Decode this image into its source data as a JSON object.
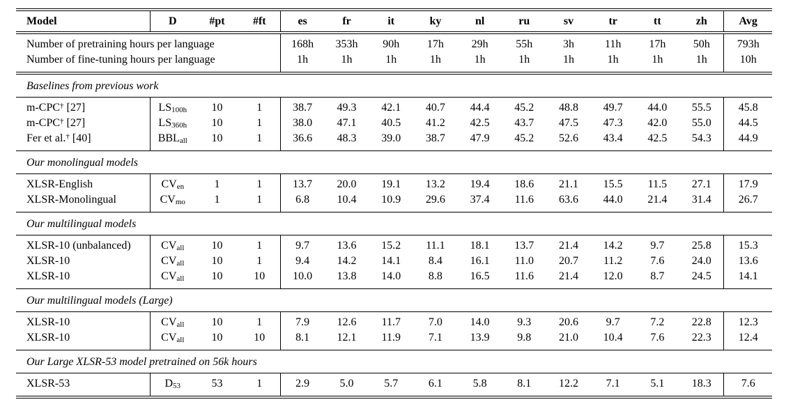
{
  "table": {
    "columns": [
      "Model",
      "D",
      "#pt",
      "#ft",
      "es",
      "fr",
      "it",
      "ky",
      "nl",
      "ru",
      "sv",
      "tr",
      "tt",
      "zh",
      "Avg"
    ],
    "hours_rows": [
      {
        "label": "Number of pretraining hours per language",
        "values": [
          "168h",
          "353h",
          "90h",
          "17h",
          "29h",
          "55h",
          "3h",
          "11h",
          "17h",
          "50h"
        ],
        "avg": "793h"
      },
      {
        "label": "Number of fine-tuning hours per language",
        "values": [
          "1h",
          "1h",
          "1h",
          "1h",
          "1h",
          "1h",
          "1h",
          "1h",
          "1h",
          "1h"
        ],
        "avg": "10h"
      }
    ],
    "sections": [
      {
        "title": "Baselines from previous work",
        "rows": [
          {
            "model": [
              {
                "t": "m-CPC"
              },
              {
                "t": "†",
                "s": "sup"
              },
              {
                "t": " [27]"
              }
            ],
            "d": [
              {
                "t": "LS"
              },
              {
                "t": "100h",
                "s": "sub"
              }
            ],
            "pt": "10",
            "ft": "1",
            "values": [
              "38.7",
              "49.3",
              "42.1",
              "40.7",
              "44.4",
              "45.2",
              "48.8",
              "49.7",
              "44.0",
              "55.5"
            ],
            "avg": "45.8"
          },
          {
            "model": [
              {
                "t": "m-CPC"
              },
              {
                "t": "†",
                "s": "sup"
              },
              {
                "t": " [27]"
              }
            ],
            "d": [
              {
                "t": "LS"
              },
              {
                "t": "360h",
                "s": "sub"
              }
            ],
            "pt": "10",
            "ft": "1",
            "values": [
              "38.0",
              "47.1",
              "40.5",
              "41.2",
              "42.5",
              "43.7",
              "47.5",
              "47.3",
              "42.0",
              "55.0"
            ],
            "avg": "44.5"
          },
          {
            "model": [
              {
                "t": "Fer et al."
              },
              {
                "t": "†",
                "s": "sup"
              },
              {
                "t": " [40]"
              }
            ],
            "d": [
              {
                "t": "BBL"
              },
              {
                "t": "all",
                "s": "sub"
              }
            ],
            "pt": "10",
            "ft": "1",
            "values": [
              "36.6",
              "48.3",
              "39.0",
              "38.7",
              "47.9",
              "45.2",
              "52.6",
              "43.4",
              "42.5",
              "54.3"
            ],
            "avg": "44.9"
          }
        ]
      },
      {
        "title": "Our monolingual models",
        "rows": [
          {
            "model": [
              {
                "t": "XLSR-English"
              }
            ],
            "d": [
              {
                "t": "CV"
              },
              {
                "t": "en",
                "s": "sub"
              }
            ],
            "pt": "1",
            "ft": "1",
            "values": [
              "13.7",
              "20.0",
              "19.1",
              "13.2",
              "19.4",
              "18.6",
              "21.1",
              "15.5",
              "11.5",
              "27.1"
            ],
            "avg": "17.9"
          },
          {
            "model": [
              {
                "t": "XLSR-Monolingual"
              }
            ],
            "d": [
              {
                "t": "CV"
              },
              {
                "t": "mo",
                "s": "sub"
              }
            ],
            "pt": "1",
            "ft": "1",
            "values": [
              "6.8",
              "10.4",
              "10.9",
              "29.6",
              "37.4",
              "11.6",
              "63.6",
              "44.0",
              "21.4",
              "31.4"
            ],
            "avg": "26.7"
          }
        ]
      },
      {
        "title": "Our multilingual models",
        "rows": [
          {
            "model": [
              {
                "t": "XLSR-10 (unbalanced)"
              }
            ],
            "d": [
              {
                "t": "CV"
              },
              {
                "t": "all",
                "s": "sub"
              }
            ],
            "pt": "10",
            "ft": "1",
            "values": [
              "9.7",
              "13.6",
              "15.2",
              "11.1",
              "18.1",
              "13.7",
              "21.4",
              "14.2",
              "9.7",
              "25.8"
            ],
            "avg": "15.3"
          },
          {
            "model": [
              {
                "t": "XLSR-10"
              }
            ],
            "d": [
              {
                "t": "CV"
              },
              {
                "t": "all",
                "s": "sub"
              }
            ],
            "pt": "10",
            "ft": "1",
            "values": [
              "9.4",
              "14.2",
              "14.1",
              "8.4",
              "16.1",
              "11.0",
              "20.7",
              "11.2",
              "7.6",
              "24.0"
            ],
            "avg": "13.6"
          },
          {
            "model": [
              {
                "t": "XLSR-10"
              }
            ],
            "d": [
              {
                "t": "CV"
              },
              {
                "t": "all",
                "s": "sub"
              }
            ],
            "pt": "10",
            "ft": "10",
            "values": [
              "10.0",
              "13.8",
              "14.0",
              "8.8",
              "16.5",
              "11.6",
              "21.4",
              "12.0",
              "8.7",
              "24.5"
            ],
            "avg": "14.1"
          }
        ]
      },
      {
        "title": "Our multilingual models (Large)",
        "rows": [
          {
            "model": [
              {
                "t": "XLSR-10"
              }
            ],
            "d": [
              {
                "t": "CV"
              },
              {
                "t": "all",
                "s": "sub"
              }
            ],
            "pt": "10",
            "ft": "1",
            "values": [
              "7.9",
              "12.6",
              "11.7",
              "7.0",
              "14.0",
              "9.3",
              "20.6",
              "9.7",
              "7.2",
              "22.8"
            ],
            "avg": "12.3"
          },
          {
            "model": [
              {
                "t": "XLSR-10"
              }
            ],
            "d": [
              {
                "t": "CV"
              },
              {
                "t": "all",
                "s": "sub"
              }
            ],
            "pt": "10",
            "ft": "10",
            "values": [
              "8.1",
              "12.1",
              "11.9",
              "7.1",
              "13.9",
              "9.8",
              "21.0",
              "10.4",
              "7.6",
              "22.3"
            ],
            "avg": "12.4"
          }
        ]
      },
      {
        "title": "Our Large XLSR-53 model pretrained on 56k hours",
        "rows": [
          {
            "model": [
              {
                "t": "XLSR-53"
              }
            ],
            "d": [
              {
                "t": "D"
              },
              {
                "t": "53",
                "s": "sub"
              }
            ],
            "pt": "53",
            "ft": "1",
            "values": [
              "2.9",
              "5.0",
              "5.7",
              "6.1",
              "5.8",
              "8.1",
              "12.2",
              "7.1",
              "5.1",
              "18.3"
            ],
            "avg": "7.6"
          }
        ]
      }
    ]
  }
}
